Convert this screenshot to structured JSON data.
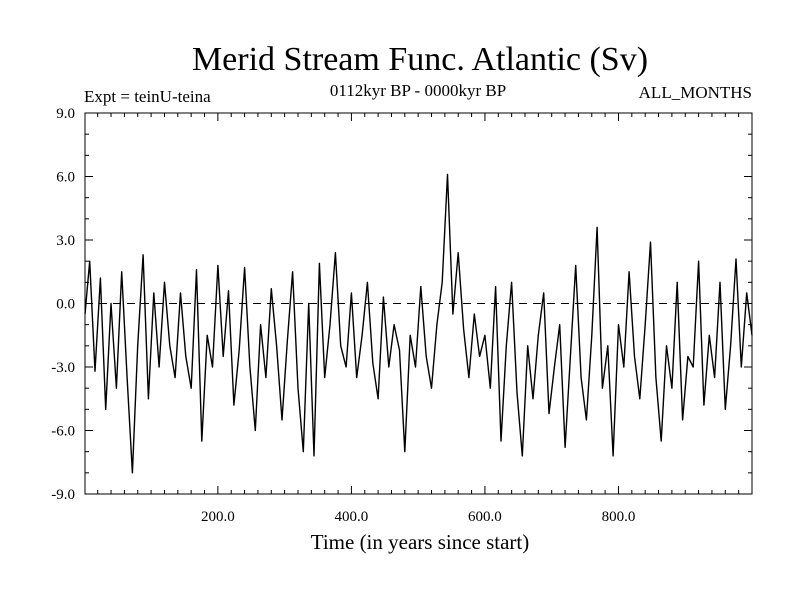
{
  "chart_data": {
    "type": "line",
    "title": "Merid Stream Func. Atlantic (Sv)",
    "subtitle_left": "Expt = teinU-teina",
    "subtitle_center": "0112kyr BP - 0000kyr BP",
    "subtitle_right": "ALL_MONTHS",
    "xlabel": "Time (in years since start)",
    "ylabel": "",
    "xlim": [
      1,
      1000
    ],
    "ylim": [
      -9.0,
      9.0
    ],
    "x_ticks": [
      200,
      400,
      600,
      800
    ],
    "x_tick_labels": [
      "200.0",
      "400.0",
      "600.0",
      "800.0"
    ],
    "y_ticks": [
      -9,
      -6,
      -3,
      0,
      3,
      6,
      9
    ],
    "y_tick_labels": [
      "-9.0",
      "-6.0",
      "-3.0",
      "0.0",
      "3.0",
      "6.0",
      "9.0"
    ],
    "zero_line": "dashed",
    "series": [
      {
        "name": "Merid Stream Func. Atlantic",
        "x": [
          1,
          8,
          16,
          24,
          32,
          40,
          48,
          56,
          64,
          72,
          80,
          88,
          96,
          104,
          112,
          120,
          128,
          136,
          144,
          152,
          160,
          168,
          176,
          184,
          192,
          200,
          208,
          216,
          224,
          232,
          240,
          248,
          256,
          264,
          272,
          280,
          288,
          296,
          304,
          312,
          320,
          328,
          336,
          344,
          352,
          360,
          368,
          376,
          384,
          392,
          400,
          408,
          416,
          424,
          432,
          440,
          448,
          456,
          464,
          472,
          480,
          488,
          496,
          504,
          512,
          520,
          528,
          536,
          544,
          552,
          560,
          568,
          576,
          584,
          592,
          600,
          608,
          616,
          624,
          632,
          640,
          648,
          656,
          664,
          672,
          680,
          688,
          696,
          704,
          712,
          720,
          728,
          736,
          744,
          752,
          760,
          768,
          776,
          784,
          792,
          800,
          808,
          816,
          824,
          832,
          840,
          848,
          856,
          864,
          872,
          880,
          888,
          896,
          904,
          912,
          920,
          928,
          936,
          944,
          952,
          960,
          968,
          976,
          984,
          992,
          1000
        ],
        "values": [
          -0.5,
          2.0,
          -3.2,
          1.2,
          -5.0,
          0.0,
          -4.0,
          1.5,
          -3.5,
          -8.0,
          -2.0,
          2.3,
          -4.5,
          0.5,
          -3.0,
          1.0,
          -2.0,
          -3.5,
          0.5,
          -2.5,
          -4.0,
          1.6,
          -6.5,
          -1.5,
          -3.0,
          1.8,
          -2.5,
          0.6,
          -4.8,
          -2.2,
          1.7,
          -3.0,
          -6.0,
          -1.0,
          -3.5,
          0.7,
          -2.0,
          -5.5,
          -1.8,
          1.5,
          -4.0,
          -7.0,
          0.0,
          -7.2,
          1.9,
          -3.5,
          -1.0,
          2.4,
          -2.0,
          -3.0,
          0.5,
          -3.5,
          -1.5,
          1.0,
          -2.8,
          -4.5,
          0.3,
          -3.0,
          -1.0,
          -2.2,
          -7.0,
          -1.5,
          -3.0,
          0.8,
          -2.5,
          -4.0,
          -1.0,
          1.0,
          6.1,
          -0.5,
          2.4,
          -1.2,
          -3.5,
          -0.5,
          -2.5,
          -1.5,
          -4.0,
          0.8,
          -6.5,
          -2.0,
          1.0,
          -4.2,
          -7.2,
          -2.0,
          -4.5,
          -1.5,
          0.5,
          -5.2,
          -3.0,
          -1.0,
          -6.8,
          -2.5,
          1.8,
          -3.5,
          -5.5,
          -1.5,
          3.6,
          -4.0,
          -2.0,
          -7.2,
          -1.0,
          -3.0,
          1.5,
          -2.5,
          -4.5,
          -1.0,
          2.9,
          -3.5,
          -6.5,
          -2.0,
          -4.0,
          1.0,
          -5.5,
          -2.5,
          -3.0,
          2.0,
          -4.8,
          -1.5,
          -3.5,
          1.0,
          -5.0,
          -2.0,
          2.1,
          -3.0,
          0.5,
          -1.5
        ]
      }
    ]
  }
}
